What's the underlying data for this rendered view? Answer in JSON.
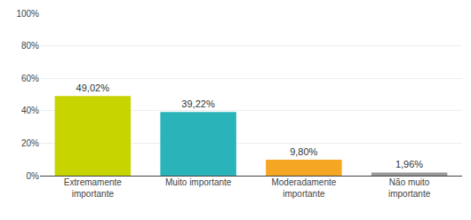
{
  "chart_data": {
    "type": "bar",
    "categories": [
      "Extremamente\nimportante",
      "Muito importante",
      "Moderadamente\nimportante",
      "Não muito\nimportante"
    ],
    "values": [
      49.02,
      39.22,
      9.8,
      1.96
    ],
    "value_labels": [
      "49,02%",
      "39,22%",
      "9,80%",
      "1,96%"
    ],
    "data_labels": true,
    "colors": [
      "#c8d400",
      "#2ab3b8",
      "#f5a623",
      "#999999"
    ],
    "ylim": [
      0,
      100
    ],
    "yticks": [
      {
        "value": 0,
        "label": "0%"
      },
      {
        "value": 20,
        "label": "20%"
      },
      {
        "value": 40,
        "label": "40%"
      },
      {
        "value": 60,
        "label": "60%"
      },
      {
        "value": 80,
        "label": "80%"
      },
      {
        "value": 100,
        "label": "100%"
      }
    ],
    "grid": true
  }
}
